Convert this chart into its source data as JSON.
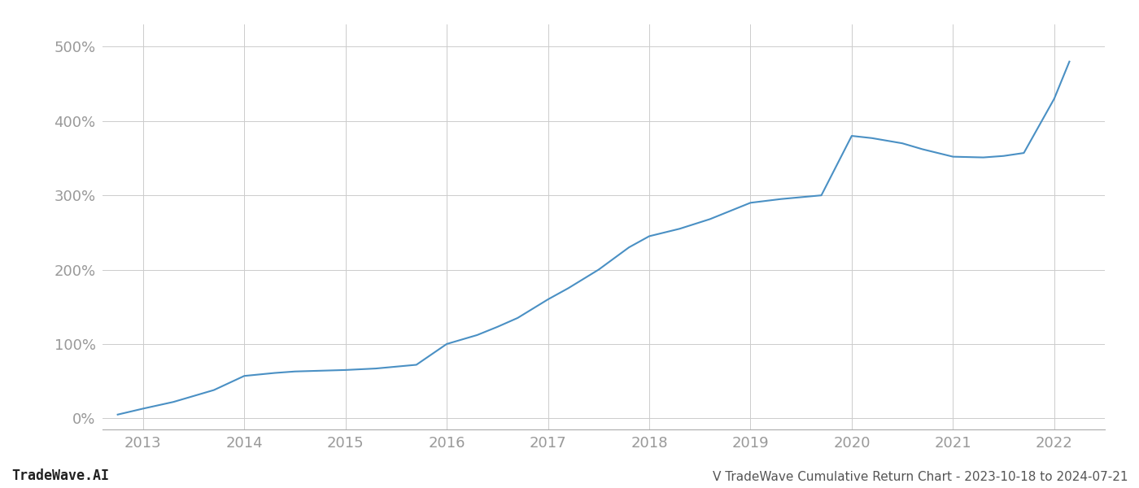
{
  "x_values": [
    2012.75,
    2013.0,
    2013.3,
    2013.7,
    2014.0,
    2014.3,
    2014.5,
    2015.0,
    2015.3,
    2015.7,
    2016.0,
    2016.3,
    2016.5,
    2016.7,
    2017.0,
    2017.2,
    2017.5,
    2017.8,
    2018.0,
    2018.3,
    2018.6,
    2019.0,
    2019.3,
    2019.7,
    2020.0,
    2020.2,
    2020.5,
    2020.7,
    2021.0,
    2021.3,
    2021.5,
    2021.7,
    2022.0,
    2022.15
  ],
  "y_values": [
    5,
    13,
    22,
    38,
    57,
    61,
    63,
    65,
    67,
    72,
    100,
    112,
    123,
    135,
    160,
    175,
    200,
    230,
    245,
    255,
    268,
    290,
    295,
    300,
    380,
    377,
    370,
    362,
    352,
    351,
    353,
    357,
    430,
    480
  ],
  "line_color": "#4a90c4",
  "line_width": 1.5,
  "grid_color": "#cccccc",
  "background_color": "#ffffff",
  "text_color": "#999999",
  "title_text": "V TradeWave Cumulative Return Chart - 2023-10-18 to 2024-07-21",
  "watermark_text": "TradeWave.AI",
  "x_min": 2012.6,
  "x_max": 2022.5,
  "y_min": -15,
  "y_max": 530,
  "y_ticks": [
    0,
    100,
    200,
    300,
    400,
    500
  ],
  "x_ticks": [
    2013,
    2014,
    2015,
    2016,
    2017,
    2018,
    2019,
    2020,
    2021,
    2022
  ],
  "tick_fontsize": 13,
  "title_fontsize": 11,
  "watermark_fontsize": 12
}
